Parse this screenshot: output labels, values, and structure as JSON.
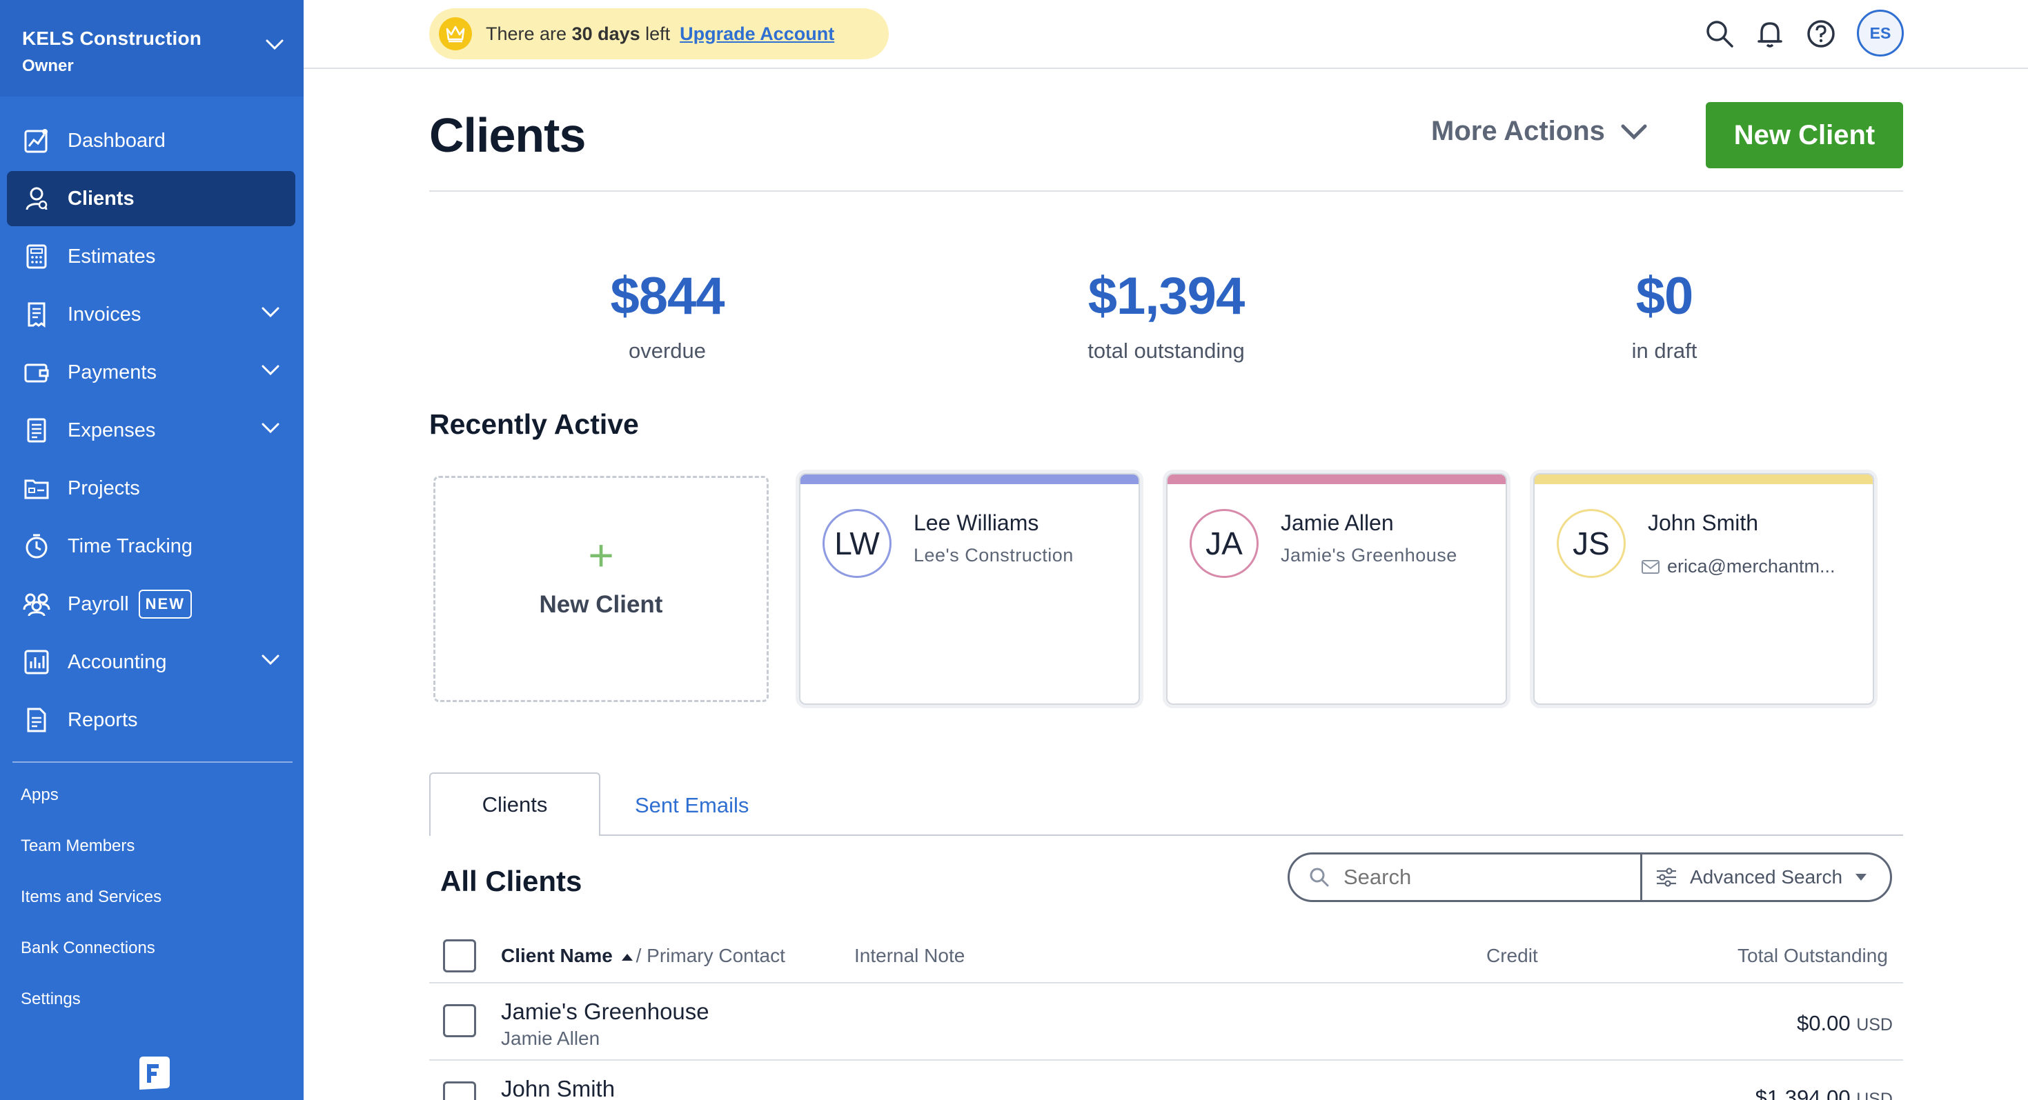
{
  "company": {
    "name": "KELS Construction",
    "role": "Owner"
  },
  "sidebar": {
    "items": [
      {
        "label": "Dashboard"
      },
      {
        "label": "Clients"
      },
      {
        "label": "Estimates"
      },
      {
        "label": "Invoices"
      },
      {
        "label": "Payments"
      },
      {
        "label": "Expenses"
      },
      {
        "label": "Projects"
      },
      {
        "label": "Time Tracking"
      },
      {
        "label": "Payroll",
        "badge": "NEW"
      },
      {
        "label": "Accounting"
      },
      {
        "label": "Reports"
      }
    ],
    "secondary": [
      {
        "label": "Apps"
      },
      {
        "label": "Team Members"
      },
      {
        "label": "Items and Services"
      },
      {
        "label": "Bank Connections"
      },
      {
        "label": "Settings"
      }
    ]
  },
  "topbar": {
    "trial_prefix": "There are ",
    "trial_days": "30 days",
    "trial_suffix": " left",
    "upgrade_label": "Upgrade Account",
    "avatar_initials": "ES"
  },
  "header": {
    "title": "Clients",
    "more_actions_label": "More Actions",
    "new_client_label": "New Client"
  },
  "summary": [
    {
      "amount": "$844",
      "label": "overdue"
    },
    {
      "amount": "$1,394",
      "label": "total outstanding"
    },
    {
      "amount": "$0",
      "label": "in draft"
    }
  ],
  "recent": {
    "title": "Recently Active",
    "new_label": "New Client",
    "cards": [
      {
        "initials": "LW",
        "name": "Lee Williams",
        "company": "Lee's Construction",
        "accent": "#8e9be3"
      },
      {
        "initials": "JA",
        "name": "Jamie Allen",
        "company": "Jamie's Greenhouse",
        "accent": "#d88aaa"
      },
      {
        "initials": "JS",
        "name": "John Smith",
        "email": "erica@merchantm...",
        "accent": "#f2dd8a"
      }
    ]
  },
  "tabs": [
    {
      "label": "Clients"
    },
    {
      "label": "Sent Emails"
    }
  ],
  "list": {
    "title": "All Clients",
    "search_placeholder": "Search",
    "advanced_label": "Advanced Search",
    "columns": {
      "name": "Client Name",
      "contact": "/ Primary Contact",
      "note": "Internal Note",
      "credit": "Credit",
      "outstanding": "Total Outstanding"
    },
    "rows": [
      {
        "name": "Jamie's Greenhouse",
        "contact": "Jamie Allen",
        "amount": "$0.00",
        "currency": "USD"
      },
      {
        "name": "John Smith",
        "contact": "",
        "amount": "$1,394.00",
        "currency": "USD"
      }
    ]
  },
  "colors": {
    "primary": "#2f6fd1",
    "accent_green": "#3b9b2c",
    "sidebar_active": "#153b7a"
  }
}
